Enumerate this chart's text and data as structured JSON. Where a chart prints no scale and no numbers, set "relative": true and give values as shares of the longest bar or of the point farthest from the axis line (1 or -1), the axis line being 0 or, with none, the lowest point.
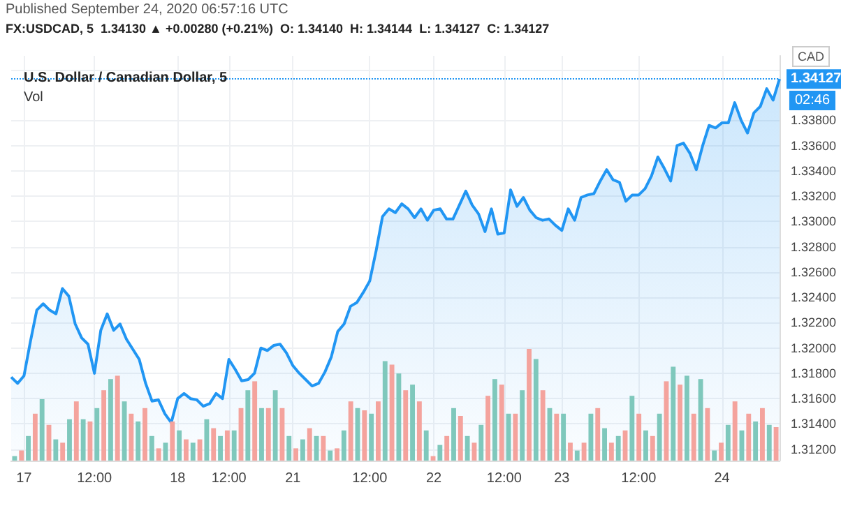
{
  "chart_data": [
    {
      "type": "area",
      "title": "U.S. Dollar / Canadian Dollar, 5",
      "annotations": [
        "Published September 24, 2020 06:57:16 UTC",
        "FX:USDCAD, 5  1.34130 ▲ +0.00280 (+0.21%)  O: 1.34140  H: 1.34144  L: 1.34127  C: 1.34127",
        "CAD",
        "02:46"
      ],
      "categories": [
        null,
        null,
        "17",
        null,
        null,
        null,
        null,
        null,
        null,
        null,
        null,
        null,
        null,
        "12:00",
        null,
        null,
        null,
        null,
        null,
        null,
        null,
        null,
        null,
        null,
        null,
        null,
        "18",
        null,
        null,
        null,
        null,
        null,
        null,
        null,
        "12:00",
        null,
        null,
        null,
        null,
        null,
        null,
        null,
        null,
        null,
        "21",
        null,
        null,
        null,
        null,
        null,
        null,
        null,
        null,
        null,
        null,
        null,
        "12:00",
        null,
        null,
        null,
        null,
        null,
        null,
        null,
        null,
        null,
        "22",
        null,
        null,
        null,
        null,
        null,
        null,
        null,
        null,
        null,
        null,
        "12:00",
        null,
        null,
        null,
        null,
        null,
        null,
        null,
        null,
        "23",
        null,
        null,
        null,
        null,
        null,
        null,
        null,
        null,
        null,
        null,
        null,
        "12:00",
        null,
        null,
        null,
        null,
        null,
        null,
        null,
        null,
        null,
        null,
        null,
        null,
        "24",
        null,
        null,
        null,
        null,
        null,
        null,
        null,
        null,
        null
      ],
      "series": [
        {
          "color": "#2196f3",
          "values": [
            1.3177,
            1.3172,
            1.3178,
            1.3205,
            1.323,
            1.3235,
            1.323,
            1.3227,
            1.3247,
            1.3241,
            1.3219,
            1.3208,
            1.3203,
            1.318,
            1.3214,
            1.3227,
            1.3214,
            1.3219,
            1.3207,
            1.3199,
            1.3191,
            1.3172,
            1.3158,
            1.3159,
            1.3148,
            1.3141,
            1.316,
            1.3164,
            1.316,
            1.3159,
            1.3154,
            1.3156,
            1.3164,
            1.316,
            1.3191,
            1.3183,
            1.3174,
            1.3175,
            1.318,
            1.32,
            1.3198,
            1.3202,
            1.3203,
            1.3196,
            1.3186,
            1.318,
            1.3175,
            1.317,
            1.3172,
            1.3181,
            1.3193,
            1.3213,
            1.3219,
            1.3233,
            1.3236,
            1.3244,
            1.3253,
            1.3277,
            1.3304,
            1.331,
            1.3307,
            1.3314,
            1.331,
            1.3303,
            1.331,
            1.3301,
            1.3309,
            1.331,
            1.3302,
            1.3302,
            1.3313,
            1.3324,
            1.3313,
            1.3306,
            1.3292,
            1.331,
            1.329,
            1.3291,
            1.3325,
            1.3312,
            1.3319,
            1.3309,
            1.3303,
            1.3301,
            1.3302,
            1.3297,
            1.3293,
            1.331,
            1.3301,
            1.3319,
            1.3321,
            1.3322,
            1.3332,
            1.3341,
            1.3333,
            1.3331,
            1.3316,
            1.3321,
            1.3321,
            1.3326,
            1.3336,
            1.3351,
            1.3342,
            1.3332,
            1.336,
            1.3362,
            1.3354,
            1.3341,
            1.336,
            1.3376,
            1.3374,
            1.3378,
            1.3378,
            1.3394,
            1.338,
            1.337,
            1.3386,
            1.3391,
            1.3405,
            1.3396,
            1.34127
          ]
        }
      ],
      "ylim": [
        1.3111,
        1.3431
      ],
      "yticks": [
        {
          "value": 1.312,
          "label": "1.31200"
        },
        {
          "value": 1.314,
          "label": "1.31400"
        },
        {
          "value": 1.316,
          "label": "1.31600"
        },
        {
          "value": 1.318,
          "label": "1.31800"
        },
        {
          "value": 1.32,
          "label": "1.32000"
        },
        {
          "value": 1.322,
          "label": "1.32200"
        },
        {
          "value": 1.324,
          "label": "1.32400"
        },
        {
          "value": 1.326,
          "label": "1.32600"
        },
        {
          "value": 1.328,
          "label": "1.32800"
        },
        {
          "value": 1.33,
          "label": "1.33000"
        },
        {
          "value": 1.332,
          "label": "1.33200"
        },
        {
          "value": 1.334,
          "label": "1.33400"
        },
        {
          "value": 1.336,
          "label": "1.33600"
        },
        {
          "value": 1.338,
          "label": "1.33800"
        },
        {
          "value": 1.342,
          "label": null
        }
      ],
      "ref_lines": [
        {
          "axis": "y",
          "value": 1.34127,
          "label": "1.34127",
          "color": "#2196f3",
          "line_style": "dotted"
        }
      ],
      "grid": true,
      "marker": "none",
      "line_style": "solid"
    },
    {
      "type": "bar",
      "title": "Vol",
      "relative": true,
      "grid": false,
      "categories": [
        null,
        null,
        null,
        null,
        null,
        null,
        null,
        null,
        null,
        null,
        null,
        null,
        null,
        null,
        null,
        null,
        null,
        null,
        null,
        null,
        null,
        null,
        null,
        null,
        null,
        null,
        null,
        null,
        null,
        null,
        null,
        null,
        null,
        null,
        null,
        null,
        null,
        null,
        null,
        null,
        null,
        null,
        null,
        null,
        null,
        null,
        null,
        null,
        null,
        null,
        null,
        null,
        null,
        null,
        null,
        null,
        null,
        null,
        null,
        null,
        null,
        null,
        null,
        null,
        null,
        null,
        null,
        null,
        null,
        null,
        null,
        null,
        null,
        null,
        null,
        null,
        null,
        null,
        null,
        null,
        null,
        null,
        null,
        null,
        null,
        null,
        null,
        null,
        null,
        null,
        null,
        null,
        null,
        null,
        null,
        null,
        null,
        null,
        null,
        null,
        null,
        null,
        null,
        null,
        null,
        null,
        null,
        null,
        null,
        null,
        null,
        null
      ],
      "values": [
        0.04,
        0.09,
        0.22,
        0.42,
        0.55,
        0.32,
        0.19,
        0.16,
        0.37,
        0.53,
        0.37,
        0.35,
        0.47,
        0.63,
        0.73,
        0.76,
        0.53,
        0.42,
        0.35,
        0.47,
        0.22,
        0.11,
        0.16,
        0.35,
        0.27,
        0.19,
        0.16,
        0.19,
        0.37,
        0.29,
        0.22,
        0.27,
        0.27,
        0.47,
        0.63,
        0.71,
        0.47,
        0.47,
        0.63,
        0.47,
        0.22,
        0.11,
        0.19,
        0.29,
        0.22,
        0.22,
        0.09,
        0.11,
        0.27,
        0.53,
        0.47,
        0.45,
        0.42,
        0.53,
        0.89,
        0.86,
        0.78,
        0.63,
        0.68,
        0.53,
        0.27,
        0.04,
        0.14,
        0.22,
        0.47,
        0.4,
        0.22,
        0.16,
        0.32,
        0.58,
        0.73,
        0.68,
        0.42,
        0.42,
        0.63,
        1,
        0.91,
        0.63,
        0.47,
        0.42,
        0.42,
        0.16,
        0.09,
        0.16,
        0.42,
        0.47,
        0.29,
        0.16,
        0.22,
        0.27,
        0.58,
        0.42,
        0.27,
        0.22,
        0.42,
        0.71,
        0.84,
        0.68,
        0.76,
        0.42,
        0.73,
        0.47,
        0.09,
        0.16,
        0.32,
        0.53,
        0.27,
        0.42,
        0.35,
        0.47,
        0.32,
        0.3
      ],
      "colors": [
        "#7fc8bc",
        "#f4a39d",
        "#7fc8bc",
        "#f4a39d",
        "#7fc8bc",
        "#f4a39d",
        "#7fc8bc",
        "#f4a39d",
        "#7fc8bc",
        "#f4a39d",
        "#7fc8bc",
        "#f4a39d",
        "#7fc8bc",
        "#f4a39d",
        "#7fc8bc",
        "#f4a39d",
        "#7fc8bc",
        "#f4a39d",
        "#7fc8bc",
        "#f4a39d",
        "#7fc8bc",
        "#f4a39d",
        "#7fc8bc",
        "#f4a39d",
        "#7fc8bc",
        "#f4a39d",
        "#7fc8bc",
        "#f4a39d",
        "#7fc8bc",
        "#f4a39d",
        "#7fc8bc",
        "#f4a39d",
        "#7fc8bc",
        "#f4a39d",
        "#7fc8bc",
        "#f4a39d",
        "#7fc8bc",
        "#f4a39d",
        "#7fc8bc",
        "#f4a39d",
        "#7fc8bc",
        "#f4a39d",
        "#7fc8bc",
        "#f4a39d",
        "#7fc8bc",
        "#f4a39d",
        "#7fc8bc",
        "#f4a39d",
        "#7fc8bc",
        "#f4a39d",
        "#7fc8bc",
        "#f4a39d",
        "#7fc8bc",
        "#f4a39d",
        "#7fc8bc",
        "#f4a39d",
        "#7fc8bc",
        "#f4a39d",
        "#7fc8bc",
        "#f4a39d",
        "#7fc8bc",
        "#f4a39d",
        "#7fc8bc",
        "#f4a39d",
        "#7fc8bc",
        "#f4a39d",
        "#7fc8bc",
        "#f4a39d",
        "#7fc8bc",
        "#f4a39d",
        "#7fc8bc",
        "#f4a39d",
        "#7fc8bc",
        "#f4a39d",
        "#7fc8bc",
        "#f4a39d",
        "#7fc8bc",
        "#f4a39d",
        "#7fc8bc",
        "#f4a39d",
        "#7fc8bc",
        "#f4a39d",
        "#7fc8bc",
        "#f4a39d",
        "#7fc8bc",
        "#f4a39d",
        "#7fc8bc",
        "#f4a39d",
        "#7fc8bc",
        "#f4a39d",
        "#7fc8bc",
        "#f4a39d",
        "#7fc8bc",
        "#f4a39d",
        "#7fc8bc",
        "#f4a39d",
        "#7fc8bc",
        "#f4a39d",
        "#7fc8bc",
        "#f4a39d",
        "#7fc8bc",
        "#f4a39d",
        "#7fc8bc",
        "#f4a39d",
        "#7fc8bc",
        "#f4a39d",
        "#7fc8bc",
        "#f4a39d",
        "#7fc8bc",
        "#f4a39d",
        "#7fc8bc",
        "#f4a39d"
      ]
    }
  ]
}
